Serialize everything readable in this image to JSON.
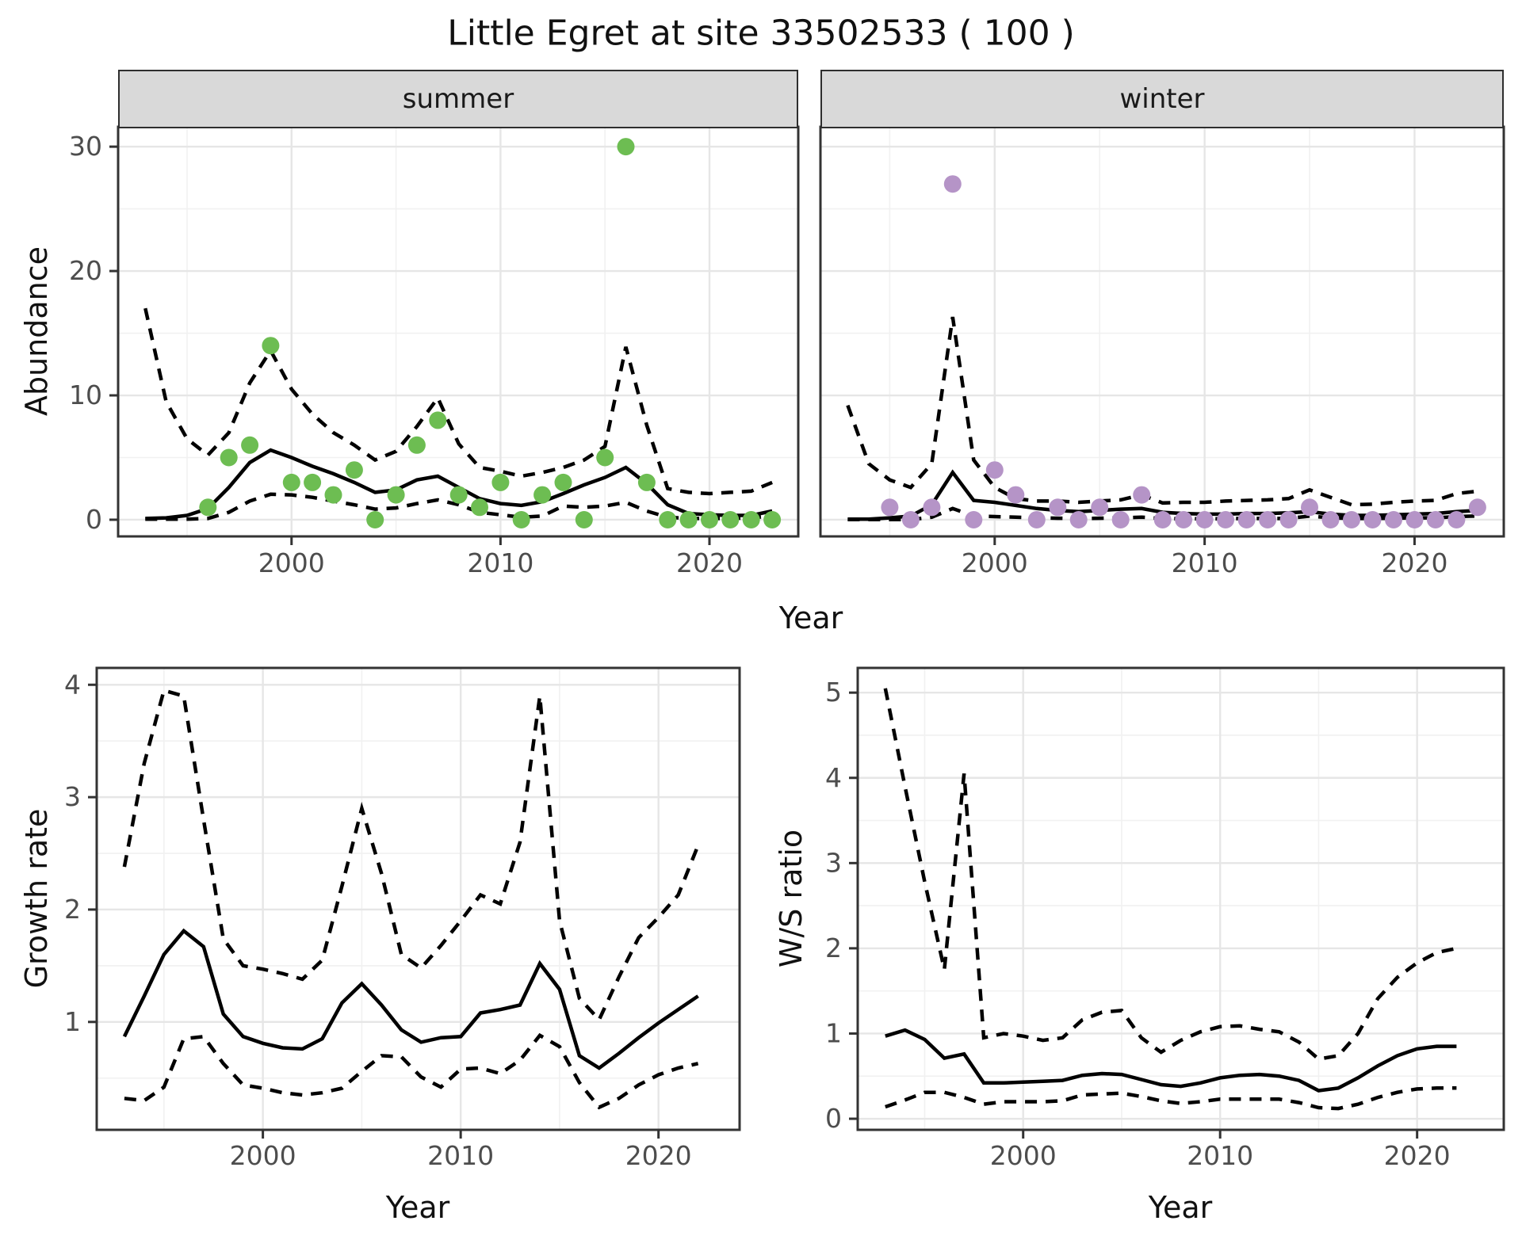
{
  "title": "Little Egret at site 33502533 ( 100 )",
  "axis_labels": {
    "top_y": "Abundance",
    "top_x": "Year",
    "growth_y": "Growth rate",
    "growth_x": "Year",
    "ws_y": "W/S ratio",
    "ws_x": "Year"
  },
  "facets": {
    "summer": "summer",
    "winter": "winter"
  },
  "colors": {
    "summer_point": "#6dbd52",
    "winter_point": "#b594c7",
    "line": "#000000",
    "panel_border": "#333333",
    "grid_major": "#e6e6e6",
    "grid_minor": "#f1f1f1",
    "tick_label": "#4d4d4d",
    "strip_bg": "#d9d9d9"
  },
  "chart_data": [
    {
      "id": "abundance-summer",
      "type": "line",
      "facet": "summer",
      "xlim": [
        1991.7,
        2024.25
      ],
      "ylim": [
        -1.34,
        31.6
      ],
      "x_major": [
        2000,
        2010,
        2020
      ],
      "x_minor": [
        1995,
        2005,
        2015
      ],
      "y_major": [
        0,
        10,
        20,
        30
      ],
      "y_minor": [
        5,
        15,
        25
      ],
      "line_years": [
        1993,
        1994,
        1995,
        1996,
        1997,
        1998,
        1999,
        2000,
        2001,
        2002,
        2003,
        2004,
        2005,
        2006,
        2007,
        2008,
        2009,
        2010,
        2011,
        2012,
        2013,
        2014,
        2015,
        2016,
        2017,
        2018,
        2019,
        2020,
        2021,
        2022,
        2023
      ],
      "series": [
        {
          "name": "upper_ci",
          "style": "dashed",
          "values": [
            17.0,
            9.5,
            6.5,
            5.2,
            7.0,
            11.0,
            13.6,
            10.5,
            8.5,
            7.0,
            6.0,
            4.8,
            5.5,
            7.5,
            9.8,
            6.1,
            4.2,
            3.9,
            3.5,
            3.8,
            4.2,
            4.8,
            5.9,
            13.9,
            7.6,
            2.5,
            2.2,
            2.1,
            2.2,
            2.3,
            3.0
          ]
        },
        {
          "name": "lower_ci",
          "style": "dashed",
          "values": [
            0.05,
            0.05,
            0.05,
            0.1,
            0.6,
            1.5,
            2.05,
            2.0,
            1.8,
            1.5,
            1.2,
            0.85,
            0.95,
            1.3,
            1.6,
            1.2,
            0.6,
            0.4,
            0.2,
            0.3,
            1.1,
            1.0,
            1.1,
            1.4,
            0.7,
            0.2,
            0.1,
            0.1,
            0.1,
            0.15,
            0.3
          ]
        },
        {
          "name": "fit",
          "style": "solid",
          "values": [
            0.1,
            0.15,
            0.35,
            0.9,
            2.6,
            4.6,
            5.6,
            5.0,
            4.3,
            3.7,
            3.0,
            2.2,
            2.4,
            3.2,
            3.5,
            2.6,
            1.7,
            1.3,
            1.15,
            1.45,
            2.1,
            2.8,
            3.4,
            4.2,
            2.9,
            1.2,
            0.5,
            0.4,
            0.35,
            0.35,
            0.7
          ]
        }
      ],
      "points": {
        "color_key": "summer_point",
        "years": [
          1996,
          1997,
          1998,
          1999,
          2000,
          2001,
          2002,
          2003,
          2004,
          2005,
          2006,
          2007,
          2008,
          2009,
          2010,
          2011,
          2012,
          2013,
          2014,
          2015,
          2016,
          2017,
          2018,
          2019,
          2020,
          2021,
          2022,
          2023
        ],
        "values": [
          1,
          5,
          6,
          14,
          3,
          3,
          2,
          4,
          0,
          2,
          6,
          8,
          2,
          1,
          3,
          0,
          2,
          3,
          0,
          5,
          30,
          3,
          0,
          0,
          0,
          0,
          0,
          0
        ]
      }
    },
    {
      "id": "abundance-winter",
      "type": "line",
      "facet": "winter",
      "xlim": [
        1991.7,
        2024.25
      ],
      "ylim": [
        -1.34,
        31.6
      ],
      "x_major": [
        2000,
        2010,
        2020
      ],
      "x_minor": [
        1995,
        2005,
        2015
      ],
      "y_major": [
        0,
        10,
        20,
        30
      ],
      "y_minor": [
        5,
        15,
        25
      ],
      "line_years": [
        1993,
        1994,
        1995,
        1996,
        1997,
        1998,
        1999,
        2000,
        2001,
        2002,
        2003,
        2004,
        2005,
        2006,
        2007,
        2008,
        2009,
        2010,
        2011,
        2012,
        2013,
        2014,
        2015,
        2016,
        2017,
        2018,
        2019,
        2020,
        2021,
        2022,
        2023
      ],
      "series": [
        {
          "name": "upper_ci",
          "style": "dashed",
          "values": [
            9.2,
            4.5,
            3.2,
            2.6,
            4.5,
            16.3,
            4.8,
            2.6,
            1.7,
            1.5,
            1.5,
            1.4,
            1.5,
            1.6,
            2.0,
            1.35,
            1.4,
            1.4,
            1.5,
            1.55,
            1.6,
            1.7,
            2.4,
            1.8,
            1.2,
            1.25,
            1.4,
            1.5,
            1.55,
            2.1,
            2.3
          ]
        },
        {
          "name": "lower_ci",
          "style": "dashed",
          "values": [
            0.02,
            0.02,
            0.02,
            0.02,
            0.2,
            0.9,
            0.3,
            0.25,
            0.2,
            0.15,
            0.12,
            0.1,
            0.12,
            0.15,
            0.2,
            0.1,
            0.08,
            0.08,
            0.08,
            0.1,
            0.1,
            0.1,
            0.3,
            0.15,
            0.1,
            0.1,
            0.12,
            0.15,
            0.15,
            0.25,
            0.3
          ]
        },
        {
          "name": "fit",
          "style": "solid",
          "values": [
            0.05,
            0.05,
            0.15,
            0.3,
            1.2,
            3.8,
            1.55,
            1.4,
            1.15,
            0.9,
            0.75,
            0.65,
            0.75,
            0.85,
            0.9,
            0.6,
            0.5,
            0.45,
            0.45,
            0.5,
            0.5,
            0.55,
            0.65,
            0.45,
            0.35,
            0.35,
            0.4,
            0.45,
            0.5,
            0.65,
            0.75
          ]
        }
      ],
      "points": {
        "color_key": "winter_point",
        "years": [
          1995,
          1996,
          1997,
          1998,
          1999,
          2000,
          2001,
          2002,
          2003,
          2004,
          2005,
          2006,
          2007,
          2008,
          2009,
          2010,
          2011,
          2012,
          2013,
          2014,
          2015,
          2016,
          2017,
          2018,
          2019,
          2020,
          2021,
          2022,
          2023
        ],
        "values": [
          1,
          0,
          1,
          27,
          0,
          4,
          2,
          0,
          1,
          0,
          1,
          0,
          2,
          0,
          0,
          0,
          0,
          0,
          0,
          0,
          1,
          0,
          0,
          0,
          0,
          0,
          0,
          0,
          1
        ]
      }
    },
    {
      "id": "growth-rate",
      "type": "line",
      "facet": null,
      "xlim": [
        1991.6,
        2024.1
      ],
      "ylim": [
        0.04,
        4.15
      ],
      "x_major": [
        2000,
        2010,
        2020
      ],
      "x_minor": [
        1995,
        2005,
        2015
      ],
      "y_major": [
        1,
        2,
        3,
        4
      ],
      "y_minor": [
        0.5,
        1.5,
        2.5,
        3.5
      ],
      "line_years": [
        1993,
        1994,
        1995,
        1996,
        1997,
        1998,
        1999,
        2000,
        2001,
        2002,
        2003,
        2004,
        2005,
        2006,
        2007,
        2008,
        2009,
        2010,
        2011,
        2012,
        2013,
        2014,
        2015,
        2016,
        2017,
        2018,
        2019,
        2020,
        2021,
        2022
      ],
      "series": [
        {
          "name": "upper_ci",
          "style": "dashed",
          "values": [
            2.38,
            3.3,
            3.95,
            3.9,
            2.8,
            1.74,
            1.5,
            1.47,
            1.43,
            1.38,
            1.55,
            2.21,
            2.9,
            2.32,
            1.6,
            1.48,
            1.68,
            1.9,
            2.13,
            2.05,
            2.6,
            3.9,
            1.9,
            1.21,
            1.02,
            1.4,
            1.75,
            1.93,
            2.13,
            2.57
          ]
        },
        {
          "name": "lower_ci",
          "style": "dashed",
          "values": [
            0.32,
            0.3,
            0.42,
            0.85,
            0.87,
            0.63,
            0.44,
            0.41,
            0.37,
            0.35,
            0.37,
            0.41,
            0.56,
            0.7,
            0.69,
            0.51,
            0.42,
            0.58,
            0.59,
            0.54,
            0.66,
            0.88,
            0.78,
            0.46,
            0.24,
            0.32,
            0.44,
            0.53,
            0.59,
            0.63
          ]
        },
        {
          "name": "fit",
          "style": "solid",
          "values": [
            0.87,
            1.23,
            1.6,
            1.81,
            1.67,
            1.07,
            0.87,
            0.81,
            0.77,
            0.76,
            0.85,
            1.17,
            1.34,
            1.15,
            0.93,
            0.82,
            0.86,
            0.87,
            1.08,
            1.11,
            1.15,
            1.52,
            1.29,
            0.7,
            0.59,
            0.72,
            0.86,
            0.99,
            1.11,
            1.23
          ]
        }
      ],
      "points": null
    },
    {
      "id": "ws-ratio",
      "type": "line",
      "facet": null,
      "xlim": [
        1991.6,
        2024.4
      ],
      "ylim": [
        -0.13,
        5.29
      ],
      "x_major": [
        2000,
        2010,
        2020
      ],
      "x_minor": [
        1995,
        2005,
        2015
      ],
      "y_major": [
        0,
        1,
        2,
        3,
        4,
        5
      ],
      "y_minor": [
        0.5,
        1.5,
        2.5,
        3.5,
        4.5
      ],
      "line_years": [
        1993,
        1994,
        1995,
        1996,
        1997,
        1998,
        1999,
        2000,
        2001,
        2002,
        2003,
        2004,
        2005,
        2006,
        2007,
        2008,
        2009,
        2010,
        2011,
        2012,
        2013,
        2014,
        2015,
        2016,
        2017,
        2018,
        2019,
        2020,
        2021,
        2022
      ],
      "series": [
        {
          "name": "upper_ci",
          "style": "dashed",
          "values": [
            5.05,
            3.9,
            2.78,
            1.75,
            4.05,
            0.95,
            1.0,
            0.97,
            0.92,
            0.95,
            1.16,
            1.25,
            1.27,
            0.95,
            0.78,
            0.92,
            1.02,
            1.08,
            1.09,
            1.05,
            1.02,
            0.9,
            0.7,
            0.74,
            1.0,
            1.41,
            1.66,
            1.83,
            1.95,
            2.0
          ]
        },
        {
          "name": "lower_ci",
          "style": "dashed",
          "values": [
            0.14,
            0.22,
            0.31,
            0.31,
            0.25,
            0.17,
            0.2,
            0.2,
            0.2,
            0.21,
            0.28,
            0.29,
            0.3,
            0.26,
            0.21,
            0.18,
            0.2,
            0.23,
            0.23,
            0.23,
            0.23,
            0.19,
            0.13,
            0.12,
            0.17,
            0.25,
            0.31,
            0.35,
            0.36,
            0.36
          ]
        },
        {
          "name": "fit",
          "style": "solid",
          "values": [
            0.97,
            1.04,
            0.93,
            0.71,
            0.76,
            0.42,
            0.42,
            0.43,
            0.44,
            0.45,
            0.51,
            0.53,
            0.52,
            0.46,
            0.4,
            0.38,
            0.42,
            0.48,
            0.51,
            0.52,
            0.5,
            0.45,
            0.33,
            0.36,
            0.48,
            0.62,
            0.74,
            0.82,
            0.85,
            0.85
          ]
        }
      ],
      "points": null
    }
  ]
}
